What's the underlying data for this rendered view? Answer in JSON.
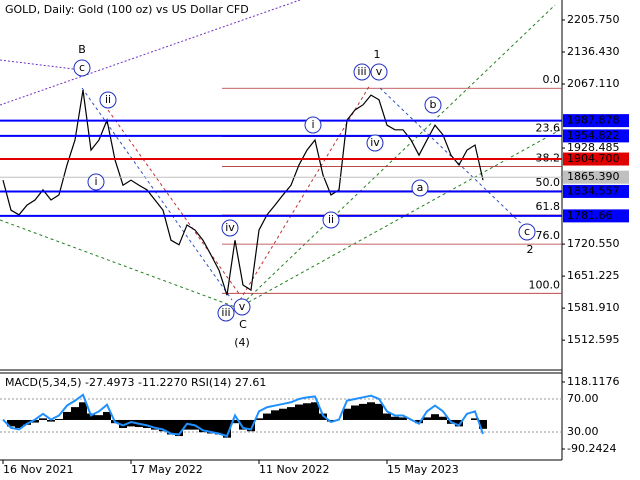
{
  "chart_data": [
    {
      "type": "line",
      "title": "GOLD, Daily:  Gold (100 oz) vs US Dollar CFD",
      "categories": [
        "16 Nov 2021",
        null,
        null,
        null,
        null,
        null,
        null,
        null,
        null,
        null,
        null,
        null,
        null,
        null,
        null,
        null,
        "17 May 2022",
        null,
        null,
        null,
        null,
        null,
        null,
        null,
        null,
        null,
        null,
        null,
        null,
        null,
        null,
        null,
        "11 Nov 2022",
        null,
        null,
        null,
        null,
        null,
        null,
        null,
        null,
        null,
        null,
        null,
        null,
        null,
        null,
        null,
        "15 May 2023",
        null,
        null,
        null,
        null,
        null,
        null,
        null,
        null,
        null,
        null,
        null,
        null
      ],
      "values": [
        1859,
        1794,
        1784,
        1805,
        1816,
        1838,
        1816,
        1827,
        1892,
        1946,
        2054,
        1924,
        1946,
        1989,
        1903,
        1848,
        1859,
        1848,
        1838,
        1816,
        1794,
        1729,
        1719,
        1762,
        1751,
        1729,
        1697,
        1664,
        1610,
        1729,
        1632,
        1621,
        1751,
        1784,
        1805,
        1827,
        1848,
        1892,
        1924,
        1946,
        1870,
        1827,
        1838,
        1989,
        2011,
        2022,
        2043,
        2033,
        1978,
        1968,
        1968,
        1946,
        1913,
        1946,
        1978,
        1957,
        1913,
        1892,
        1924,
        1935,
        1859
      ],
      "color": "#000000",
      "ylim": [
        1448,
        2249
      ],
      "yticks": [
        {
          "value": 2205.75,
          "label": "2205.750"
        },
        {
          "value": 2136.43,
          "label": "2136.430"
        },
        {
          "value": 2067.11,
          "label": "2067.110"
        },
        1928.485,
        {
          "value": 1720.55,
          "label": "1720.550"
        },
        1651.225,
        {
          "value": 1581.91,
          "label": "1581.910"
        },
        1512.595
      ],
      "price_lines": [
        {
          "value": 1987.878,
          "color": "#0000ff"
        },
        {
          "value": 1954.822,
          "color": "#0000ff"
        },
        {
          "value": 1904.7,
          "label": "1904.700",
          "color": "#e00000"
        },
        {
          "value": 1865.39,
          "label": "1865.390",
          "color": "#c0c0c0"
        },
        {
          "value": 1834.557,
          "color": "#0000ff"
        },
        {
          "value": 1781.66,
          "color": "#0000ff"
        }
      ],
      "fibonacci": {
        "range": [
          2058,
          1614
        ],
        "color": "#b03030",
        "levels": [
          {
            "value": 0,
            "label": "0.0"
          },
          23.6,
          38.2,
          {
            "value": 50,
            "label": "50.0"
          },
          61.8,
          {
            "value": 76,
            "label": "76.0"
          },
          {
            "value": 100,
            "label": "100.0"
          }
        ]
      },
      "annotations": [
        {
          "text": "B",
          "color": "#b03030",
          "circled": false
        },
        {
          "text": "c",
          "color": "#2030c0",
          "circled": true
        },
        {
          "text": "ii",
          "color": "#2030c0",
          "circled": true
        },
        {
          "text": "i",
          "color": "#2030c0",
          "circled": true
        },
        {
          "text": "iv",
          "color": "#2030c0",
          "circled": true
        },
        {
          "text": "iii",
          "color": "#2030c0",
          "circled": true
        },
        {
          "text": "v",
          "color": "#2030c0",
          "circled": true
        },
        {
          "text": "C",
          "color": "#b03030",
          "circled": false
        },
        {
          "text": "(4)",
          "color": "#208020",
          "circled": false
        },
        {
          "text": "1",
          "color": "#b03030",
          "circled": false
        },
        {
          "text": "iii",
          "color": "#2030c0",
          "circled": true
        },
        {
          "text": "v",
          "color": "#2030c0",
          "circled": true
        },
        {
          "text": "i",
          "color": "#2030c0",
          "circled": true
        },
        {
          "text": "iv",
          "color": "#2030c0",
          "circled": true
        },
        {
          "text": "ii",
          "color": "#2030c0",
          "circled": true
        },
        {
          "text": "b",
          "color": "#2030c0",
          "circled": true
        },
        {
          "text": "a",
          "color": "#2030c0",
          "circled": true
        },
        {
          "text": "c",
          "color": "#2030c0",
          "circled": true
        },
        {
          "text": "2",
          "color": "#b03030",
          "circled": false
        }
      ]
    },
    {
      "type": "indicator",
      "title": "MACD(5,34,5) -27.4973 -11.2270 RSI(14) 27.61",
      "ylim": [
        -4,
        101.5
      ],
      "yticks": [
        {
          "value": 70,
          "label": "70.00"
        },
        {
          "value": 30,
          "label": "30.00"
        }
      ],
      "y2lim": [
        -124.5,
        146.1
      ],
      "y2ticks": [
        118.1176,
        -90.2424
      ],
      "series": [
        {
          "kind": "bar",
          "axis": "y2",
          "color": "#000000",
          "values": [
            0,
            -20,
            -25,
            -15,
            -8,
            5,
            -5,
            3,
            25,
            40,
            55,
            20,
            15,
            25,
            -10,
            -25,
            -20,
            -22,
            -25,
            -30,
            -35,
            -45,
            -50,
            -30,
            -30,
            -38,
            -42,
            -45,
            -55,
            -10,
            -30,
            -35,
            5,
            20,
            30,
            35,
            40,
            48,
            52,
            55,
            20,
            -5,
            0,
            35,
            45,
            50,
            55,
            50,
            20,
            10,
            8,
            0,
            -10,
            8,
            18,
            10,
            -12,
            -20,
            0,
            5,
            -27.4973
          ]
        },
        {
          "kind": "line",
          "color": "#1e90ff",
          "values": [
            45,
            35,
            33,
            40,
            45,
            52,
            45,
            50,
            62,
            68,
            75,
            50,
            55,
            63,
            42,
            38,
            42,
            40,
            38,
            35,
            33,
            28,
            27,
            40,
            38,
            32,
            30,
            28,
            25,
            50,
            35,
            33,
            55,
            60,
            62,
            64,
            66,
            70,
            72,
            73,
            50,
            42,
            45,
            68,
            70,
            72,
            74,
            70,
            55,
            50,
            50,
            45,
            40,
            55,
            62,
            55,
            42,
            38,
            52,
            55,
            27.61
          ]
        }
      ]
    }
  ]
}
